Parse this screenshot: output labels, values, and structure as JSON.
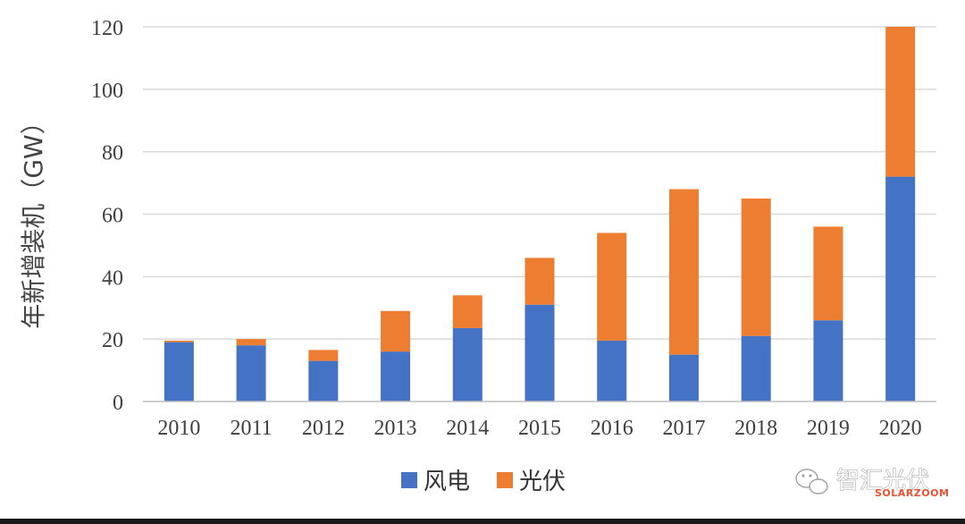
{
  "chart_data": {
    "type": "bar",
    "stacked": true,
    "categories": [
      "2010",
      "2011",
      "2012",
      "2013",
      "2014",
      "2015",
      "2016",
      "2017",
      "2018",
      "2019",
      "2020"
    ],
    "series": [
      {
        "name": "风电",
        "color": "#4472C4",
        "values": [
          19,
          18,
          13,
          16,
          23.5,
          31,
          19.5,
          15,
          21,
          26,
          72
        ]
      },
      {
        "name": "光伏",
        "color": "#ED7D31",
        "values": [
          0.5,
          2,
          3.5,
          13,
          10.5,
          15,
          34.5,
          53,
          44,
          30,
          48
        ]
      }
    ],
    "ylabel": "年新增装机（GW）",
    "ylim": [
      0,
      120
    ],
    "yticks": [
      0,
      20,
      40,
      60,
      80,
      100,
      120
    ],
    "grid": true,
    "legend_position": "bottom"
  },
  "watermark": {
    "text": "智汇光伏",
    "subtext": "SOLARZOOM",
    "icon": "wechat-icon"
  }
}
